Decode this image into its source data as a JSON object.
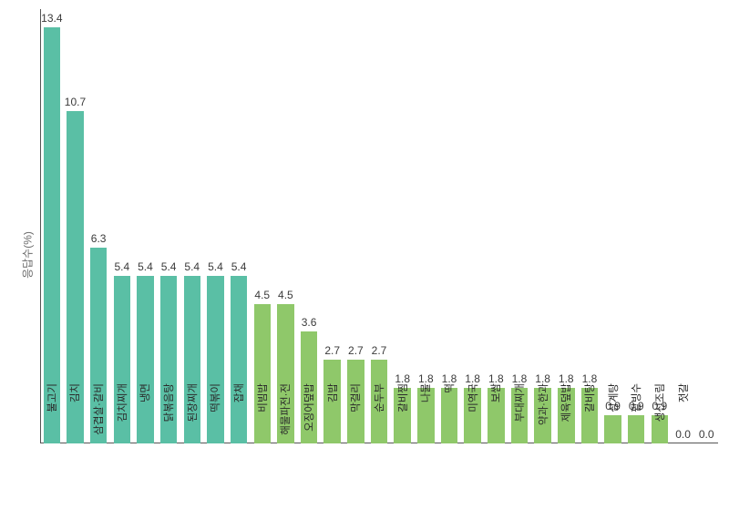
{
  "chart": {
    "type": "bar",
    "yaxis_label": "응답수(%)",
    "yaxis_label_fontsize": 12,
    "value_label_fontsize": 12,
    "xlabel_fontsize": 11.5,
    "background_color": "#ffffff",
    "axis_color": "#555555",
    "text_color": "#3a3a3a",
    "ylim": [
      0,
      14
    ],
    "bar_width": 0.72,
    "colors": {
      "teal": "#5abfa5",
      "green": "#8fc86a"
    },
    "bars": [
      {
        "label": "불고기",
        "value": 13.4,
        "color": "teal"
      },
      {
        "label": "김치",
        "value": 10.7,
        "color": "teal"
      },
      {
        "label": "삼겹살·갈비",
        "value": 6.3,
        "color": "teal"
      },
      {
        "label": "김치찌개",
        "value": 5.4,
        "color": "teal"
      },
      {
        "label": "냉면",
        "value": 5.4,
        "color": "teal"
      },
      {
        "label": "닭볶음탕",
        "value": 5.4,
        "color": "teal"
      },
      {
        "label": "된장찌개",
        "value": 5.4,
        "color": "teal"
      },
      {
        "label": "떡볶이",
        "value": 5.4,
        "color": "teal"
      },
      {
        "label": "잡채",
        "value": 5.4,
        "color": "teal"
      },
      {
        "label": "비빔밥",
        "value": 4.5,
        "color": "green"
      },
      {
        "label": "해물파전·전",
        "value": 4.5,
        "color": "green"
      },
      {
        "label": "오징어덮밥",
        "value": 3.6,
        "color": "green"
      },
      {
        "label": "김밥",
        "value": 2.7,
        "color": "green"
      },
      {
        "label": "막걸리",
        "value": 2.7,
        "color": "green"
      },
      {
        "label": "순두부",
        "value": 2.7,
        "color": "green"
      },
      {
        "label": "갈비찜",
        "value": 1.8,
        "color": "green"
      },
      {
        "label": "나물",
        "value": 1.8,
        "color": "green"
      },
      {
        "label": "떡",
        "value": 1.8,
        "color": "green"
      },
      {
        "label": "미역국",
        "value": 1.8,
        "color": "green"
      },
      {
        "label": "보쌈",
        "value": 1.8,
        "color": "green"
      },
      {
        "label": "부대찌개",
        "value": 1.8,
        "color": "green"
      },
      {
        "label": "약과·한과",
        "value": 1.8,
        "color": "green"
      },
      {
        "label": "제육덮밥",
        "value": 1.8,
        "color": "green"
      },
      {
        "label": "갈비탕",
        "value": 1.8,
        "color": "green"
      },
      {
        "label": "삼계탕",
        "value": 0.9,
        "color": "green"
      },
      {
        "label": "팥빙수",
        "value": 0.9,
        "color": "green"
      },
      {
        "label": "생선조림",
        "value": 0.9,
        "color": "green"
      },
      {
        "label": "젓갈",
        "value": 0.0,
        "color": "green"
      },
      {
        "label": "",
        "value": 0.0,
        "color": "green"
      }
    ]
  }
}
